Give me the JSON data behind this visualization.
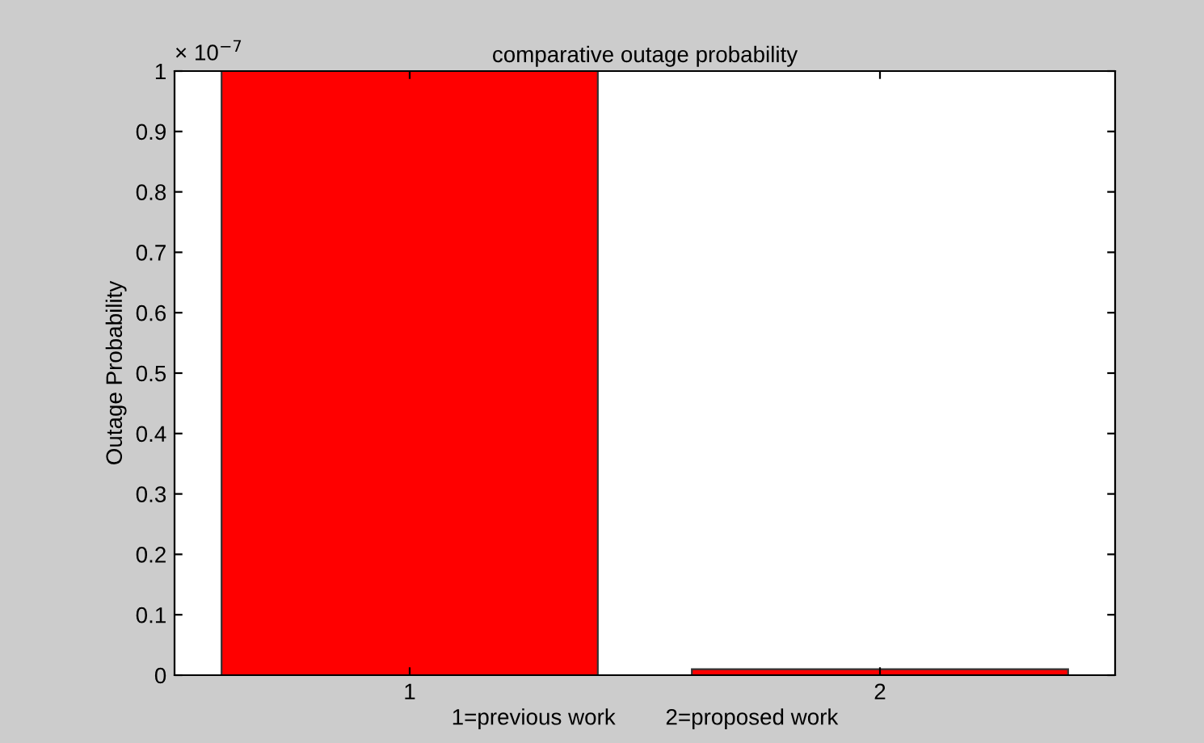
{
  "chart_data": {
    "type": "bar",
    "title": "comparative outage probability",
    "xlabel": "1=previous work        2=proposed work",
    "ylabel": "Outage Probability",
    "categories": [
      "1",
      "2"
    ],
    "values": [
      1,
      0.01
    ],
    "color": "#ff0000",
    "ylim": [
      0,
      1
    ],
    "yticks": [
      0,
      0.1,
      0.2,
      0.3,
      0.4,
      0.5,
      0.6,
      0.7,
      0.8,
      0.9,
      1
    ],
    "annotations": [
      "× 10$^{−7}$"
    ],
    "grid": false
  }
}
